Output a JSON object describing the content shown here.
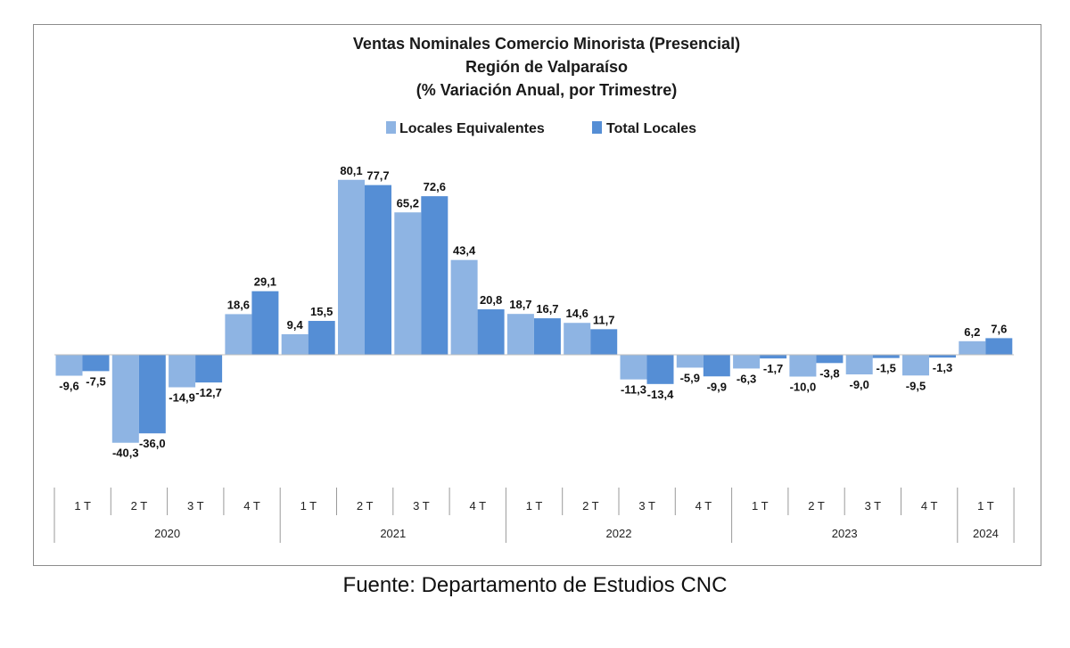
{
  "chart_data": {
    "type": "bar",
    "title": [
      "Ventas Nominales Comercio Minorista (Presencial)",
      "Región de Valparaíso",
      "(% Variación Anual, por Trimestre)"
    ],
    "categories": [
      {
        "quarter": "1 T",
        "year": "2020"
      },
      {
        "quarter": "2 T",
        "year": "2020"
      },
      {
        "quarter": "3 T",
        "year": "2020"
      },
      {
        "quarter": "4 T",
        "year": "2020"
      },
      {
        "quarter": "1 T",
        "year": "2021"
      },
      {
        "quarter": "2 T",
        "year": "2021"
      },
      {
        "quarter": "3 T",
        "year": "2021"
      },
      {
        "quarter": "4 T",
        "year": "2021"
      },
      {
        "quarter": "1 T",
        "year": "2022"
      },
      {
        "quarter": "2 T",
        "year": "2022"
      },
      {
        "quarter": "3 T",
        "year": "2022"
      },
      {
        "quarter": "4 T",
        "year": "2022"
      },
      {
        "quarter": "1 T",
        "year": "2023"
      },
      {
        "quarter": "2 T",
        "year": "2023"
      },
      {
        "quarter": "3 T",
        "year": "2023"
      },
      {
        "quarter": "4 T",
        "year": "2023"
      },
      {
        "quarter": "1 T",
        "year": "2024"
      }
    ],
    "years": [
      "2020",
      "2021",
      "2022",
      "2023",
      "2024"
    ],
    "series": [
      {
        "name": "Locales Equivalentes",
        "color": "#8eb4e3",
        "values": [
          -9.6,
          -40.3,
          -14.9,
          18.6,
          9.4,
          80.1,
          65.2,
          43.4,
          18.7,
          14.6,
          -11.3,
          -5.9,
          -6.3,
          -10.0,
          -9.0,
          -9.5,
          6.2
        ],
        "labels": [
          "-9,6",
          "-40,3",
          "-14,9",
          "18,6",
          "9,4",
          "80,1",
          "65,2",
          "43,4",
          "18,7",
          "14,6",
          "-11,3",
          "-5,9",
          "-6,3",
          "-10,0",
          "-9,0",
          "-9,5",
          "6,2"
        ]
      },
      {
        "name": "Total Locales",
        "color": "#558ed5",
        "values": [
          -7.5,
          -36.0,
          -12.7,
          29.1,
          15.5,
          77.7,
          72.6,
          20.8,
          16.7,
          11.7,
          -13.4,
          -9.9,
          -1.7,
          -3.8,
          -1.5,
          -1.3,
          7.6
        ],
        "labels": [
          "-7,5",
          "-36,0",
          "-12,7",
          "29,1",
          "15,5",
          "77,7",
          "72,6",
          "20,8",
          "16,7",
          "11,7",
          "-13,4",
          "-9,9",
          "-1,7",
          "-3,8",
          "-1,5",
          "-1,3",
          "7,6"
        ]
      }
    ],
    "legend_position": "top-center",
    "grid": false
  },
  "source": "Fuente: Departamento de Estudios CNC"
}
